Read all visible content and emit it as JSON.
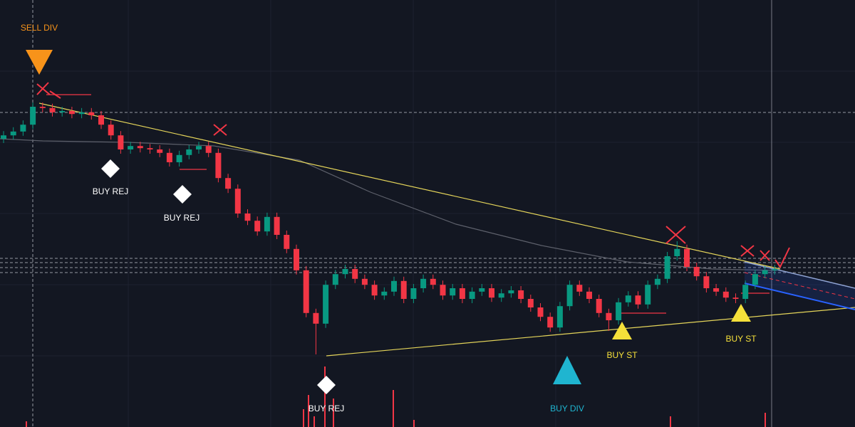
{
  "chart_data": {
    "type": "candlestick",
    "up_color": "#089981",
    "down_color": "#f23645",
    "ylim": [
      0,
      100
    ],
    "open": [
      67.5,
      68.3,
      69.2,
      70.8,
      75,
      74.7,
      73.7,
      74,
      73.3,
      73.7,
      73,
      70.8,
      68.3,
      65,
      65.8,
      65.3,
      65,
      64.2,
      62,
      63.7,
      65,
      65.8,
      64.2,
      58.3,
      55.8,
      50,
      48.3,
      45.8,
      49.2,
      45,
      41.7,
      36.7,
      26.7,
      24.2,
      33.3,
      35.8,
      37,
      34.7,
      33.3,
      30.8,
      31.7,
      34.2,
      30,
      32.5,
      34.7,
      33.3,
      30.8,
      32.5,
      30,
      31.7,
      32.5,
      30.3,
      31.3,
      32,
      30,
      28,
      25.8,
      23.3,
      28.3,
      33.3,
      31.7,
      30,
      26.7,
      25,
      29.2,
      30.8,
      28.7,
      33.3,
      34.7,
      40,
      41.7,
      37.5,
      35.3,
      32.5,
      31.7,
      30.3,
      30,
      33.3,
      35.8,
      36.7
    ],
    "high": [
      69.3,
      70.2,
      71.8,
      76,
      76,
      75.7,
      75,
      75,
      74.7,
      74.7,
      74,
      71.8,
      69.3,
      66.8,
      66.8,
      66.3,
      66,
      65.2,
      64.7,
      66,
      66.8,
      66.8,
      65.2,
      59.3,
      56.8,
      51,
      49.3,
      50.2,
      50.2,
      46,
      42.7,
      37.7,
      27.7,
      34.3,
      36.8,
      38,
      38,
      35.7,
      34.3,
      32.7,
      35.2,
      35.2,
      33.5,
      35.7,
      35.7,
      34.3,
      33.5,
      33.5,
      32.7,
      33.5,
      33.5,
      32.3,
      33,
      33,
      31,
      29,
      26.8,
      29.3,
      34.3,
      34.3,
      32.7,
      31,
      27.7,
      30.2,
      31.8,
      31.8,
      34.3,
      35.7,
      41,
      43.5,
      42.7,
      38.5,
      36.3,
      33.5,
      32.7,
      31.3,
      34.3,
      36.8,
      37.7,
      38
    ],
    "low": [
      66.5,
      67.3,
      68.2,
      69.8,
      73.7,
      72.7,
      72.7,
      72.3,
      72.3,
      72,
      69.8,
      67.3,
      64,
      64,
      64.3,
      64,
      63.2,
      61,
      61,
      62.7,
      64,
      63.2,
      57.3,
      54.8,
      49,
      47.3,
      44.8,
      44.8,
      44,
      40.7,
      35.7,
      25.7,
      17,
      23.2,
      32.3,
      34.8,
      33.7,
      32.3,
      29.8,
      29.8,
      30.7,
      29,
      29,
      31.5,
      32.3,
      29.8,
      29.8,
      29,
      29,
      30.7,
      29.3,
      29.3,
      30.3,
      29,
      27,
      24.8,
      22.3,
      22.3,
      27.3,
      30.7,
      29,
      25.7,
      22.5,
      24,
      28.2,
      27.7,
      27.7,
      32.3,
      33.7,
      39,
      36.5,
      34.3,
      31.5,
      30.7,
      29.3,
      29,
      29,
      32.3,
      34.8,
      35.7
    ],
    "close": [
      68.3,
      69.2,
      70.8,
      75,
      74.7,
      73.7,
      74,
      73.3,
      73.7,
      73,
      70.8,
      68.3,
      65,
      65.8,
      65.3,
      65,
      64.2,
      62,
      63.7,
      65,
      65.8,
      64.2,
      58.3,
      55.8,
      50,
      48.3,
      45.8,
      49.2,
      45,
      41.7,
      36.7,
      26.7,
      24.2,
      33.3,
      35.8,
      37,
      34.7,
      33.3,
      30.8,
      31.7,
      34.2,
      30,
      32.5,
      34.7,
      33.3,
      30.8,
      32.5,
      30,
      31.7,
      32.5,
      30.3,
      31.3,
      32,
      30,
      28,
      25.8,
      23.3,
      28.3,
      33.3,
      31.7,
      30,
      26.7,
      25,
      29.2,
      30.8,
      28.7,
      33.3,
      34.7,
      40,
      41.7,
      37.5,
      35.3,
      32.5,
      31.7,
      30.3,
      30,
      33.3,
      35.8,
      36.7,
      37
    ],
    "annotations": [
      "SELL DIV",
      "BUY REJ",
      "BUY REJ",
      "BUY REJ",
      "BUY ST",
      "BUY ST",
      "BUY DIV"
    ]
  }
}
